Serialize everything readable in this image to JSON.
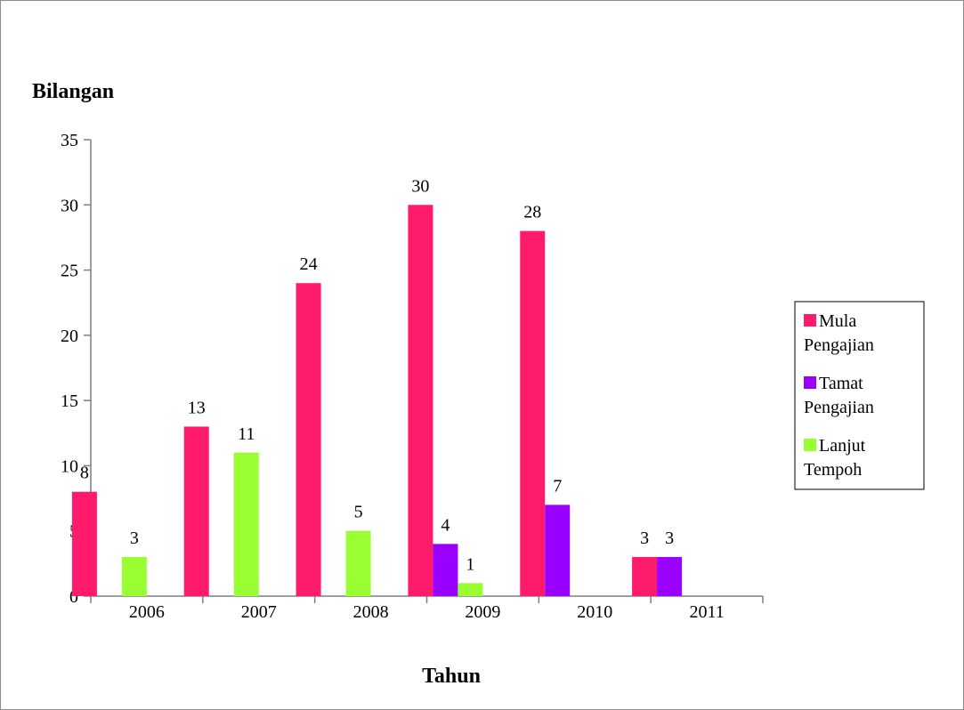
{
  "chart_data": {
    "type": "bar",
    "title": "",
    "ylabel": "Bilangan",
    "xlabel": "Tahun",
    "ylim": [
      0,
      35
    ],
    "yticks": [
      "0",
      "5",
      "10",
      "15",
      "20",
      "25",
      "30",
      "35"
    ],
    "categories": [
      "2006",
      "2007",
      "2008",
      "2009",
      "2010",
      "2011"
    ],
    "grid": false,
    "legend_position": "right",
    "series": [
      {
        "name": [
          "Mula",
          "Pengajian"
        ],
        "color": "#ff1b6b",
        "values": [
          8,
          13,
          24,
          30,
          28,
          3
        ]
      },
      {
        "name": [
          "Tamat",
          "Pengajian"
        ],
        "color": "#9900ff",
        "values": [
          null,
          null,
          null,
          4,
          7,
          3
        ]
      },
      {
        "name": [
          "Lanjut",
          "Tempoh"
        ],
        "color": "#99ff33",
        "values": [
          3,
          11,
          5,
          1,
          null,
          null
        ]
      }
    ]
  }
}
